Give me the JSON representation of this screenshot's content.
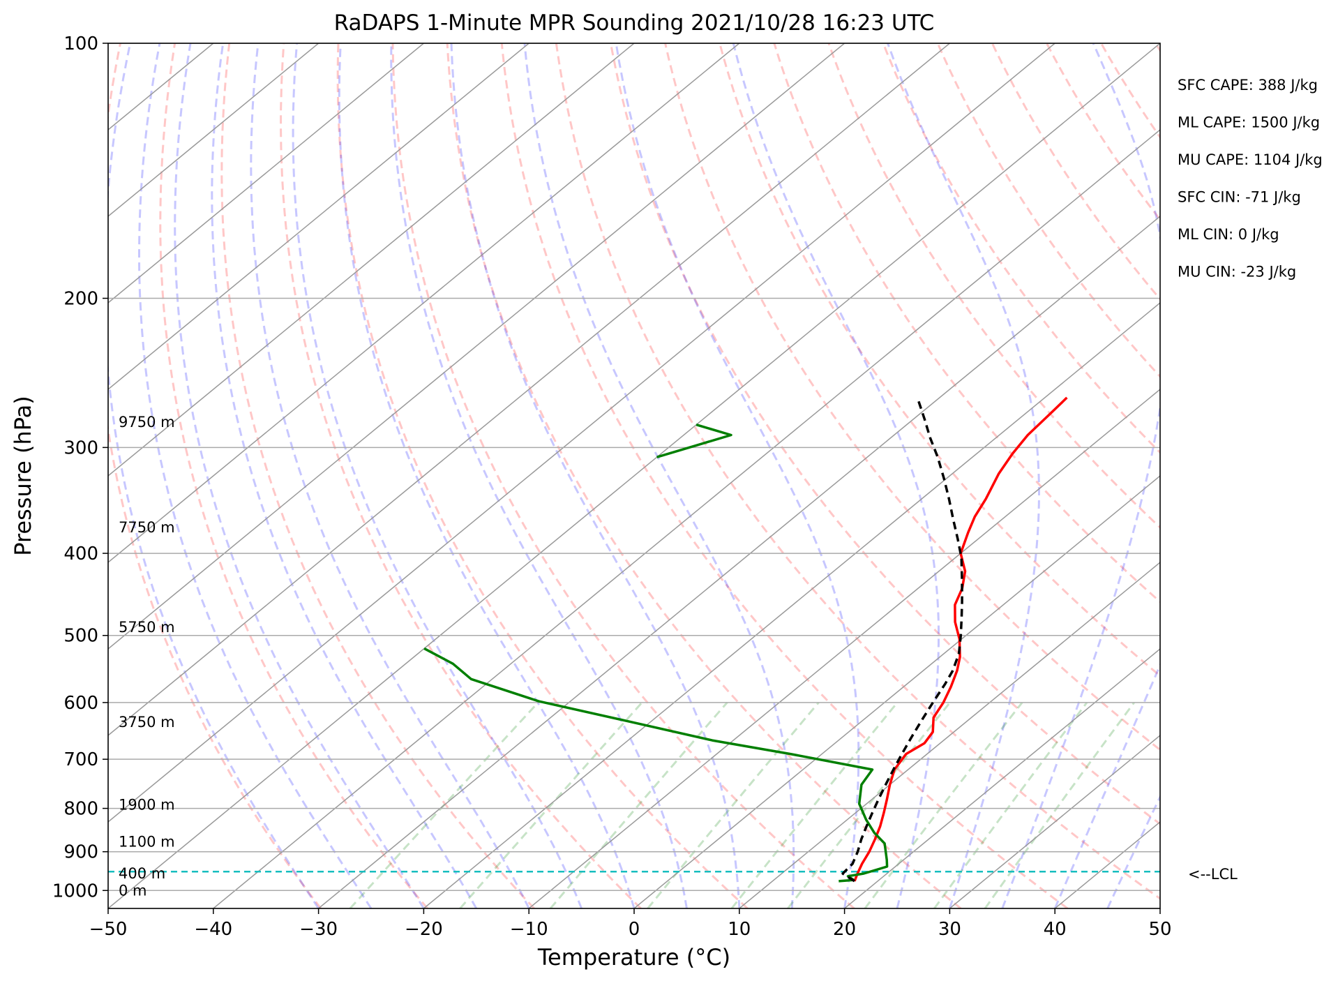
{
  "chart_data": {
    "type": "skew-t",
    "title": "RaDAPS 1-Minute MPR Sounding 2021/10/28 16:23 UTC",
    "xlabel": "Temperature (°C)",
    "ylabel": "Pressure (hPa)",
    "xlim": [
      -50,
      50
    ],
    "ylim": [
      1050,
      100
    ],
    "y_scale": "log",
    "grid": true,
    "x_ticks": [
      "−50",
      "−40",
      "−30",
      "−20",
      "−10",
      "0",
      "10",
      "20",
      "30",
      "40",
      "50"
    ],
    "y_ticks": [
      "100",
      "200",
      "300",
      "400",
      "500",
      "600",
      "700",
      "800",
      "900",
      "1000"
    ],
    "stats": [
      "SFC CAPE: 388 J/kg",
      "ML CAPE: 1500 J/kg",
      "MU CAPE: 1104 J/kg",
      "SFC CIN: -71 J/kg",
      "ML CIN: 0 J/kg",
      "MU CIN: -23 J/kg"
    ],
    "height_labels": [
      {
        "p": 280,
        "label": "9750 m"
      },
      {
        "p": 373,
        "label": "7750 m"
      },
      {
        "p": 489,
        "label": "5750 m"
      },
      {
        "p": 633,
        "label": "3750 m"
      },
      {
        "p": 792,
        "label": "1900 m"
      },
      {
        "p": 876,
        "label": "1100 m"
      },
      {
        "p": 955,
        "label": "400 m"
      },
      {
        "p": 1000,
        "label": "0 m"
      }
    ],
    "lcl": {
      "p": 950,
      "label": "<--LCL"
    },
    "series": [
      {
        "color": "#ff0000",
        "points": [
          [
            17.8,
            975
          ],
          [
            17.2,
            955
          ],
          [
            16.5,
            930
          ],
          [
            15.8,
            900
          ],
          [
            14.9,
            870
          ],
          [
            13.9,
            840
          ],
          [
            12.7,
            810
          ],
          [
            11.4,
            780
          ],
          [
            10.0,
            750
          ],
          [
            8.7,
            720
          ],
          [
            8.0,
            690
          ],
          [
            8.5,
            670
          ],
          [
            8.0,
            650
          ],
          [
            6.4,
            625
          ],
          [
            5.6,
            600
          ],
          [
            4.5,
            575
          ],
          [
            3.2,
            550
          ],
          [
            1.9,
            530
          ],
          [
            -0.2,
            505
          ],
          [
            -2.6,
            482
          ],
          [
            -4.6,
            460
          ],
          [
            -5.8,
            440
          ],
          [
            -7.5,
            420
          ],
          [
            -10.0,
            400
          ],
          [
            -11.7,
            378
          ],
          [
            -12.9,
            362
          ],
          [
            -13.9,
            345
          ],
          [
            -15.6,
            322
          ],
          [
            -16.6,
            305
          ],
          [
            -17.3,
            290
          ],
          [
            -17.6,
            275
          ],
          [
            -17.9,
            262
          ]
        ]
      },
      {
        "color": "#007f00",
        "points": [
          [
            16.3,
            975
          ],
          [
            17.6,
            972
          ],
          [
            16.6,
            962
          ],
          [
            17.8,
            955
          ],
          [
            19.2,
            937
          ],
          [
            18.4,
            920
          ],
          [
            16.3,
            880
          ],
          [
            14.1,
            855
          ],
          [
            11.8,
            825
          ],
          [
            9.3,
            790
          ],
          [
            7.3,
            750
          ],
          [
            6.6,
            720
          ],
          [
            -3.0,
            690
          ],
          [
            -12.0,
            665
          ],
          [
            -22.0,
            632
          ],
          [
            -33.0,
            598
          ],
          [
            -42.0,
            563
          ],
          [
            -45.5,
            540
          ],
          [
            -50.0,
            518
          ]
        ]
      },
      {
        "color": "#007f00",
        "points": [
          [
            -50.0,
            282
          ],
          [
            -45.5,
            290
          ],
          [
            -50.0,
            308
          ]
        ]
      },
      {
        "color": "#000000",
        "dashed": true,
        "points": [
          [
            17.8,
            975
          ],
          [
            15.8,
            955
          ],
          [
            15.6,
            930
          ],
          [
            14.7,
            900
          ],
          [
            13.6,
            870
          ],
          [
            12.6,
            840
          ],
          [
            11.6,
            810
          ],
          [
            10.6,
            780
          ],
          [
            9.6,
            750
          ],
          [
            8.6,
            720
          ],
          [
            7.6,
            690
          ],
          [
            6.6,
            660
          ],
          [
            5.6,
            630
          ],
          [
            4.6,
            600
          ],
          [
            3.6,
            570
          ],
          [
            2.8,
            550
          ],
          [
            1.4,
            525
          ],
          [
            -0.5,
            500
          ],
          [
            -2.6,
            475
          ],
          [
            -4.3,
            456
          ],
          [
            -6.8,
            430
          ],
          [
            -9.4,
            405
          ],
          [
            -11.9,
            385
          ],
          [
            -14.6,
            365
          ],
          [
            -17.4,
            345
          ],
          [
            -20.3,
            326
          ],
          [
            -23.3,
            308
          ],
          [
            -26.3,
            292
          ],
          [
            -28.9,
            278
          ],
          [
            -31.7,
            264
          ]
        ]
      }
    ]
  }
}
